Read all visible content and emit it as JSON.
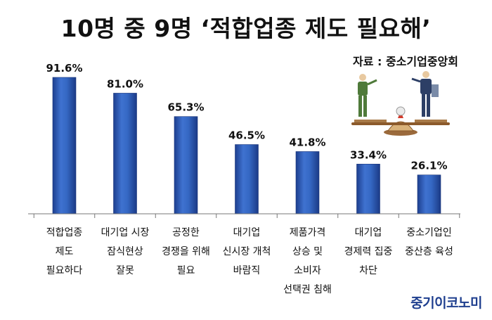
{
  "chart_data": {
    "type": "bar",
    "title": "10명 중 9명 ‘적합업종 제도 필요해’",
    "source": "자료 : 중소기업중앙회",
    "categories": [
      [
        "적합업종",
        "제도",
        "필요하다"
      ],
      [
        "대기업 시장",
        "잠식현상",
        "잘못"
      ],
      [
        "공정한",
        "경쟁을 위해",
        "필요"
      ],
      [
        "대기업",
        "신시장 개척",
        "바람직"
      ],
      [
        "제품가격",
        "상승 및",
        "소비자",
        "선택권 침해"
      ],
      [
        "대기업",
        "경제력 집중",
        "차단"
      ],
      [
        "중소기업인",
        "중산층 육성"
      ]
    ],
    "values": [
      91.6,
      81.0,
      65.3,
      46.5,
      41.8,
      33.4,
      26.1
    ],
    "value_labels": [
      "91.6%",
      "81.0%",
      "65.3%",
      "46.5%",
      "41.8%",
      "33.4%",
      "26.1%"
    ],
    "ylim": [
      0,
      100
    ],
    "grid": false,
    "bar_color": "#2f5db8"
  },
  "logo": "중기이코노미"
}
